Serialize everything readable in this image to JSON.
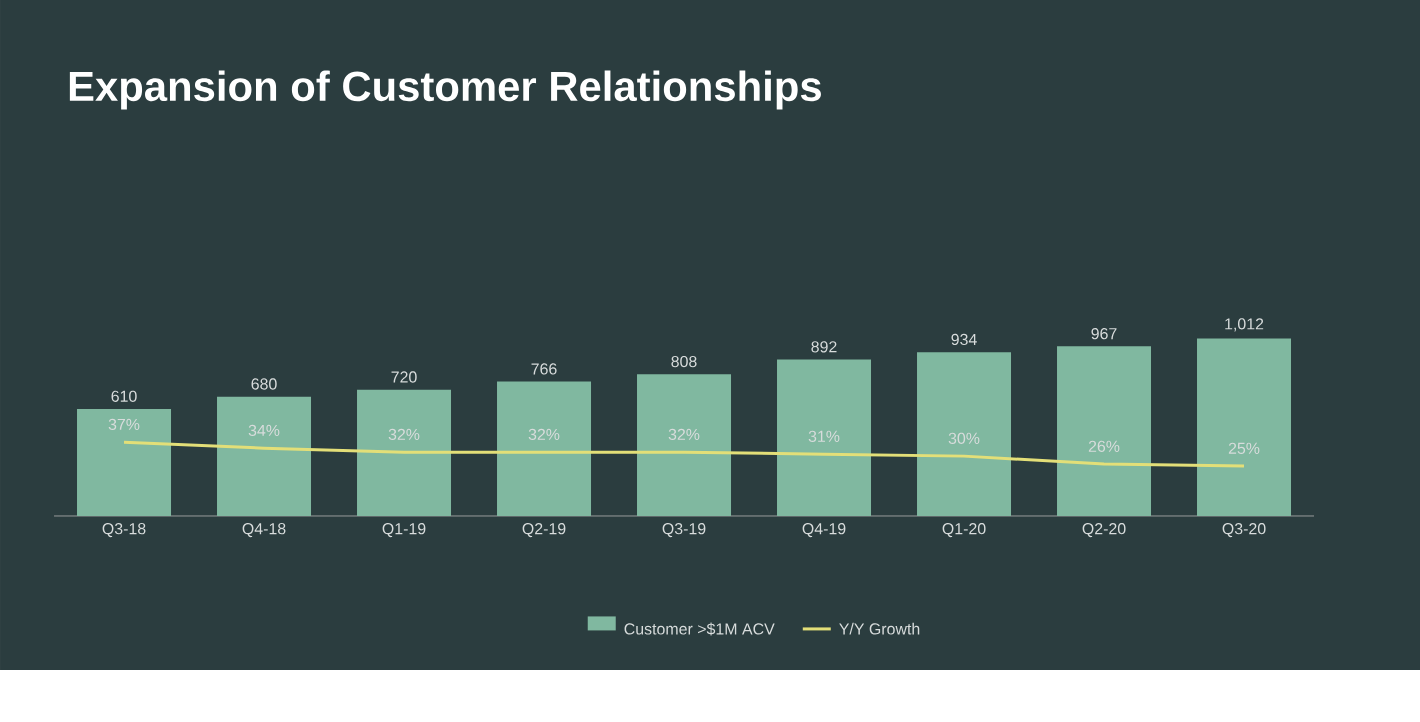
{
  "chart_data": {
    "type": "bar",
    "title": "Expansion of Customer Relationships",
    "categories": [
      "Q3-18",
      "Q4-18",
      "Q1-19",
      "Q2-19",
      "Q3-19",
      "Q4-19",
      "Q1-20",
      "Q2-20",
      "Q3-20"
    ],
    "series": [
      {
        "name": "Customer >$1M ACV",
        "color": "#80b8a0",
        "values": [
          610,
          680,
          720,
          766,
          808,
          892,
          934,
          967,
          1012
        ],
        "value_labels": [
          "610",
          "680",
          "720",
          "766",
          "808",
          "892",
          "934",
          "967",
          "1,012"
        ]
      },
      {
        "name": "Y/Y Growth",
        "type": "line",
        "axis": "y2",
        "color": "#e3df78",
        "values": [
          37,
          34,
          32,
          32,
          32,
          31,
          30,
          26,
          25
        ],
        "value_labels": [
          "37%",
          "34%",
          "32%",
          "32%",
          "32%",
          "31%",
          "30%",
          "26%",
          "25%"
        ]
      }
    ],
    "legend": "bottom"
  }
}
